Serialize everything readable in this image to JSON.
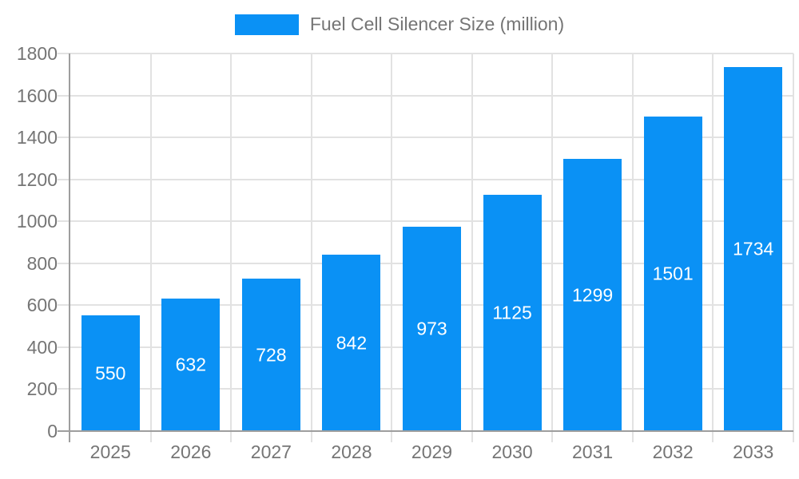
{
  "chart_data": {
    "type": "bar",
    "title": "Fuel Cell Silencer Size (million)",
    "series_name": "Fuel Cell Silencer Size (million)",
    "categories": [
      "2025",
      "2026",
      "2027",
      "2028",
      "2029",
      "2030",
      "2031",
      "2032",
      "2033"
    ],
    "values": [
      550,
      632,
      728,
      842,
      973,
      1125,
      1299,
      1501,
      1734
    ],
    "xlabel": "",
    "ylabel": "",
    "ylim": [
      0,
      1800
    ],
    "ytick_step": 200,
    "yticks": [
      0,
      200,
      400,
      600,
      800,
      1000,
      1200,
      1400,
      1600,
      1800
    ],
    "grid": true,
    "legend_position": "top",
    "colors": {
      "bar": "#0a91f5",
      "bar_value_label": "#ffffff",
      "axis_text": "#757575",
      "gridline": "#e2e2e2",
      "axis_line": "#9e9e9e",
      "background": "#ffffff"
    }
  }
}
